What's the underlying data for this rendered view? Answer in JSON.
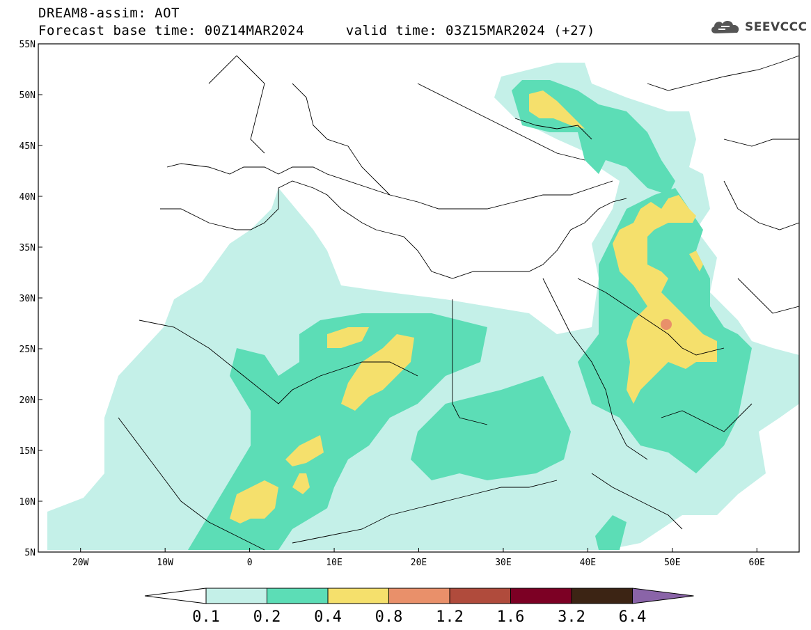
{
  "title": {
    "line1": "DREAM8-assim: AOT",
    "line2": "Forecast base time: 00Z14MAR2024     valid time: 03Z15MAR2024 (+27)"
  },
  "logo": {
    "text": "SEEVCCC",
    "icon": "cloud-icon"
  },
  "map": {
    "lon_range": [
      -25,
      65
    ],
    "lat_range": [
      5,
      55
    ],
    "x_ticks": [
      {
        "lon": -20,
        "label": "20W"
      },
      {
        "lon": -10,
        "label": "10W"
      },
      {
        "lon": 0,
        "label": "0"
      },
      {
        "lon": 10,
        "label": "10E"
      },
      {
        "lon": 20,
        "label": "20E"
      },
      {
        "lon": 30,
        "label": "30E"
      },
      {
        "lon": 40,
        "label": "40E"
      },
      {
        "lon": 50,
        "label": "50E"
      },
      {
        "lon": 60,
        "label": "60E"
      }
    ],
    "y_ticks": [
      {
        "lat": 55,
        "label": "55N"
      },
      {
        "lat": 50,
        "label": "50N"
      },
      {
        "lat": 45,
        "label": "45N"
      },
      {
        "lat": 40,
        "label": "40N"
      },
      {
        "lat": 35,
        "label": "35N"
      },
      {
        "lat": 30,
        "label": "30N"
      },
      {
        "lat": 25,
        "label": "25N"
      },
      {
        "lat": 20,
        "label": "20N"
      },
      {
        "lat": 15,
        "label": "15N"
      },
      {
        "lat": 10,
        "label": "10N"
      },
      {
        "lat": 5,
        "label": "5N"
      }
    ]
  },
  "legend": {
    "levels": [
      "0.1",
      "0.2",
      "0.4",
      "0.8",
      "1.2",
      "1.6",
      "3.2",
      "6.4"
    ],
    "colors": [
      "#ffffff",
      "#c4f0e8",
      "#5cddb6",
      "#f5e06c",
      "#e9906a",
      "#b04b3c",
      "#7c0024",
      "#3c2414",
      "#8a64a8"
    ]
  }
}
